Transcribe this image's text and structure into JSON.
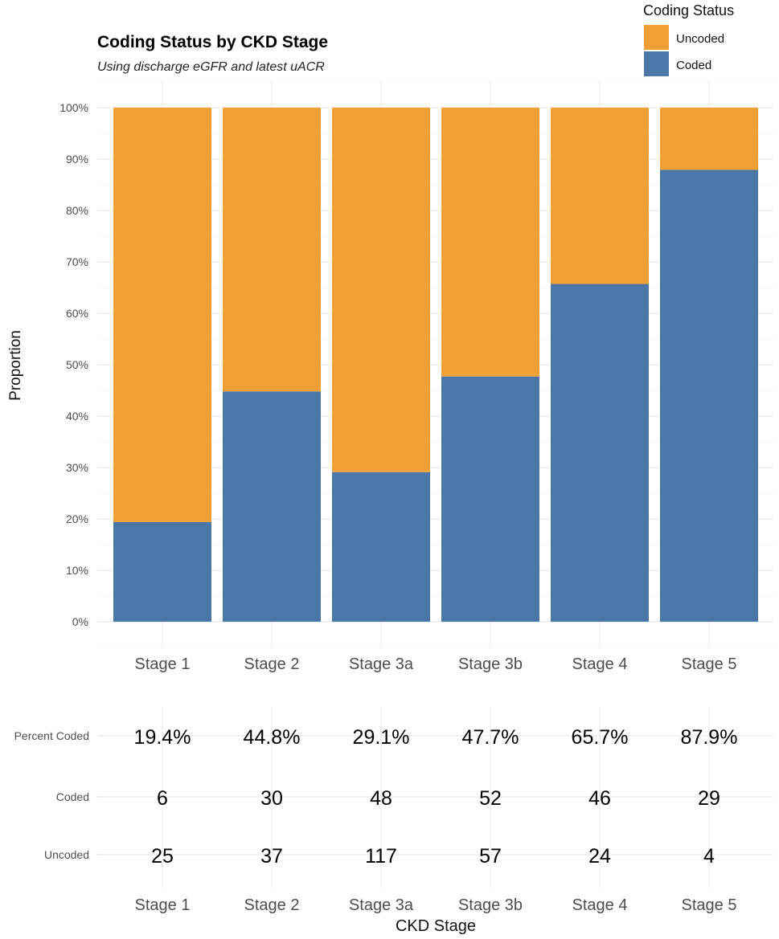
{
  "chart_data": {
    "type": "bar",
    "stacked": true,
    "percent_stacked": true,
    "title": "Coding Status by CKD Stage",
    "subtitle": "Using discharge eGFR and latest uACR",
    "xlabel": "CKD Stage",
    "ylabel": "Proportion",
    "ylim": [
      0,
      1
    ],
    "yticks": [
      "0%",
      "10%",
      "20%",
      "30%",
      "40%",
      "50%",
      "60%",
      "70%",
      "80%",
      "90%",
      "100%"
    ],
    "categories": [
      "Stage 1",
      "Stage 2",
      "Stage 3a",
      "Stage 3b",
      "Stage 4",
      "Stage 5"
    ],
    "legend": {
      "title": "Coding Status",
      "position": "top-right",
      "entries": [
        "Uncoded",
        "Coded"
      ]
    },
    "series": [
      {
        "name": "Coded",
        "color": "#4A76A8",
        "values": [
          0.194,
          0.448,
          0.291,
          0.477,
          0.657,
          0.879
        ]
      },
      {
        "name": "Uncoded",
        "color": "#F0A035",
        "values": [
          0.806,
          0.552,
          0.709,
          0.523,
          0.343,
          0.121
        ]
      }
    ],
    "grid": true
  },
  "table": {
    "row_labels": [
      "Percent Coded",
      "Coded",
      "Uncoded"
    ],
    "rows": [
      [
        "19.4%",
        "44.8%",
        "29.1%",
        "47.7%",
        "65.7%",
        "87.9%"
      ],
      [
        "6",
        "30",
        "48",
        "52",
        "46",
        "29"
      ],
      [
        "25",
        "37",
        "117",
        "57",
        "24",
        "4"
      ]
    ]
  }
}
